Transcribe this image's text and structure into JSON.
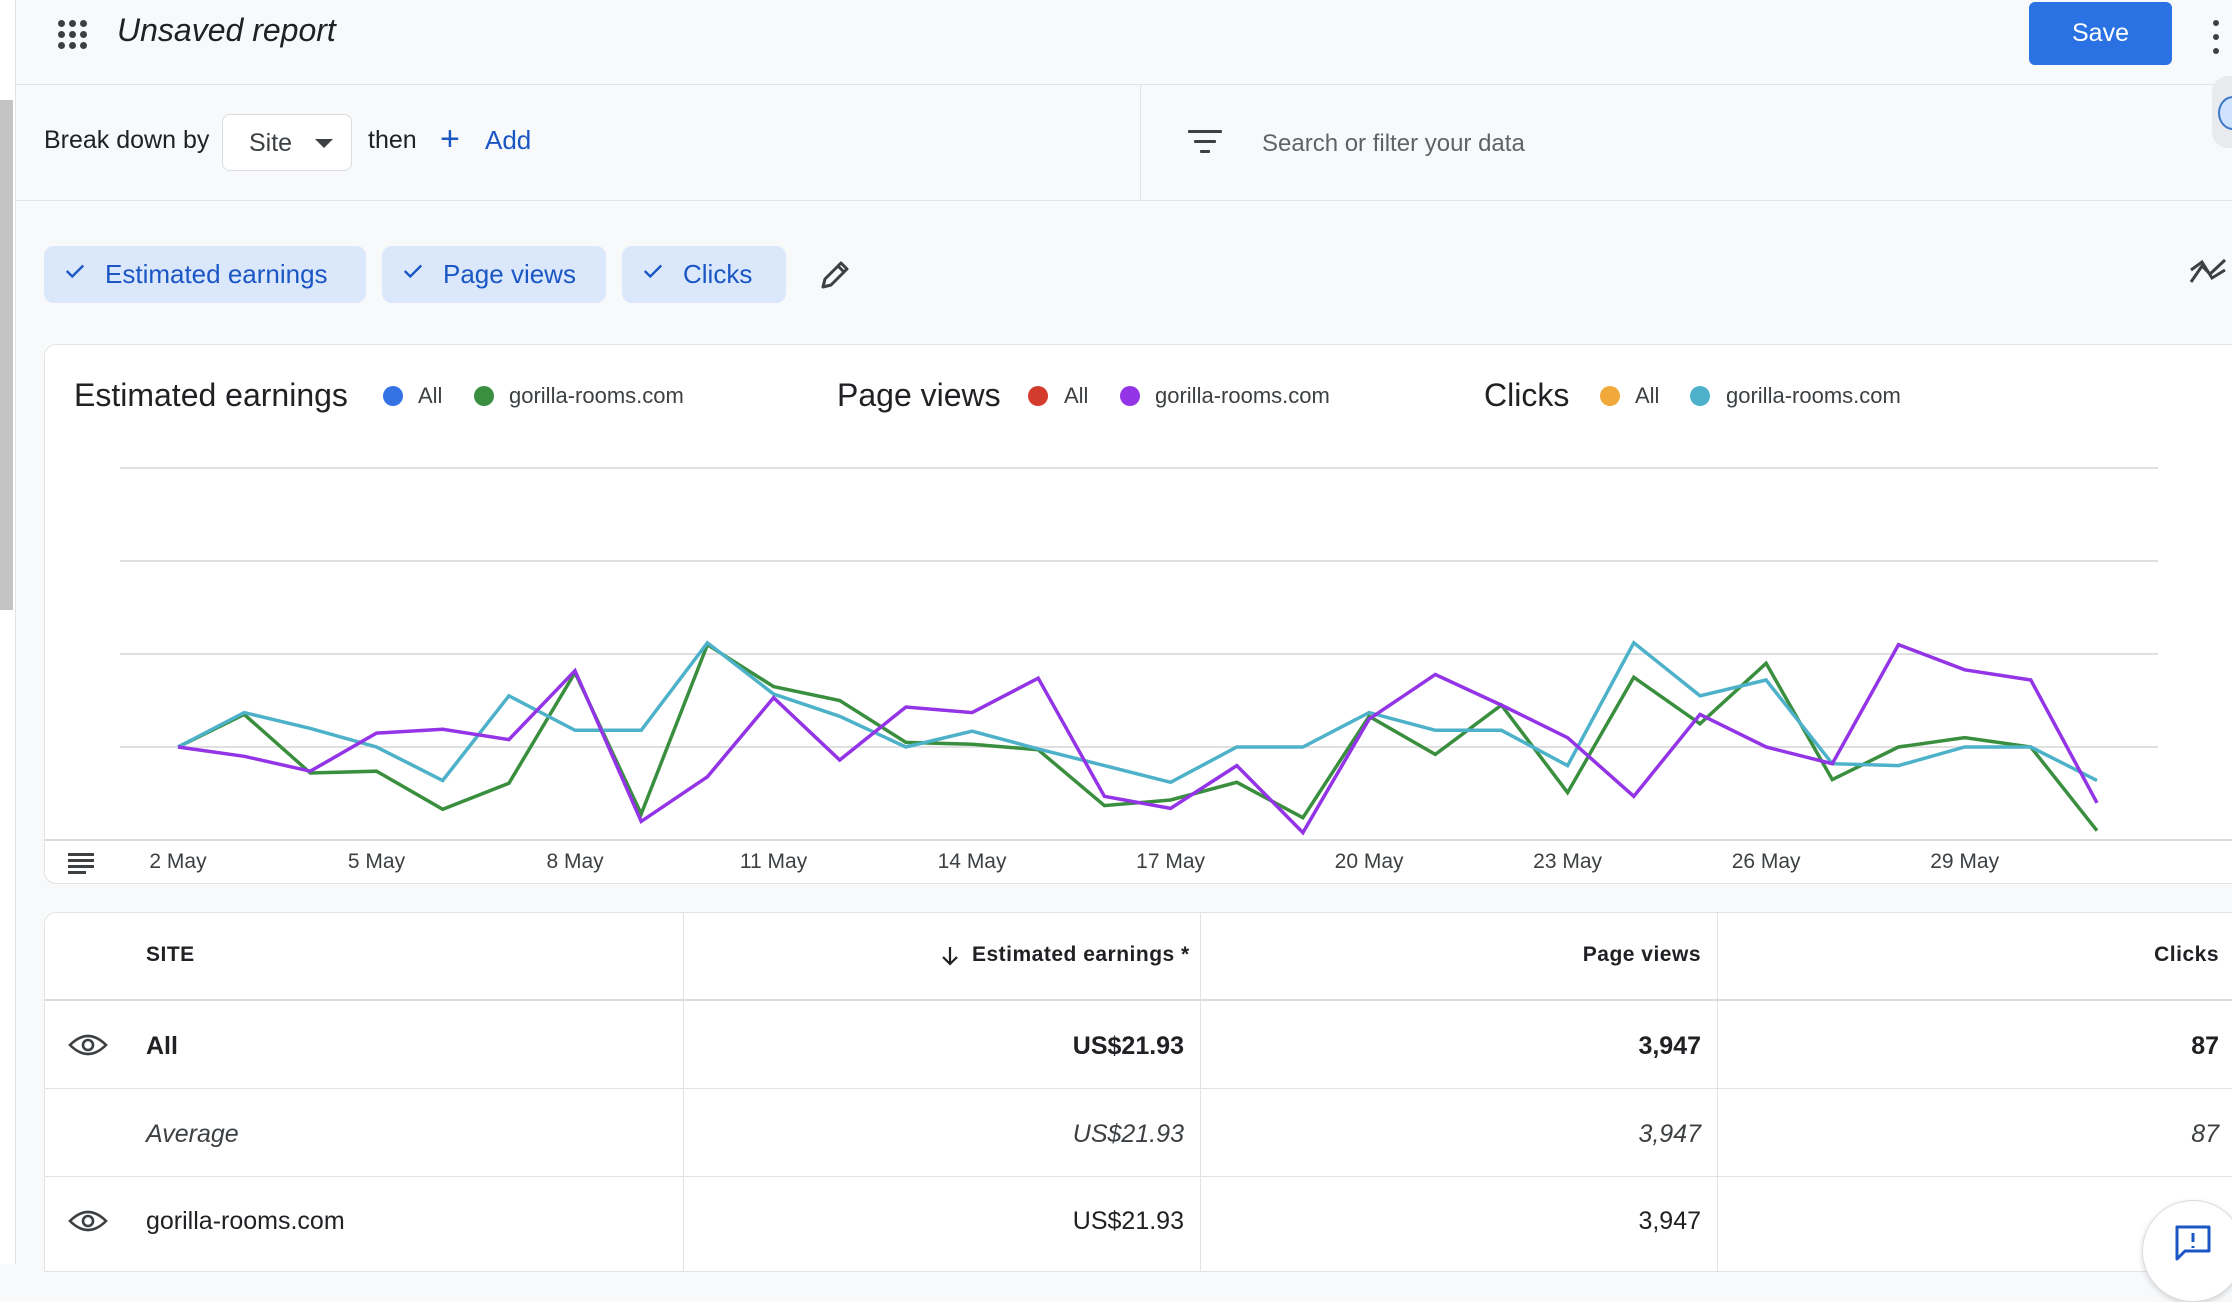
{
  "header": {
    "title": "Unsaved report",
    "save_label": "Save"
  },
  "toolbar": {
    "break_down_label": "Break down by",
    "dimension_value": "Site",
    "then_label": "then",
    "add_label": "Add",
    "search_placeholder": "Search or filter your data"
  },
  "metric_chips": [
    {
      "label": "Estimated earnings",
      "selected": true
    },
    {
      "label": "Page views",
      "selected": true
    },
    {
      "label": "Clicks",
      "selected": true
    }
  ],
  "legend": {
    "groups": [
      {
        "title": "Estimated earnings",
        "items": [
          {
            "label": "All",
            "color": "#3573e4"
          },
          {
            "label": "gorilla-rooms.com",
            "color": "#3a8f3f"
          }
        ]
      },
      {
        "title": "Page views",
        "items": [
          {
            "label": "All",
            "color": "#d33b2c"
          },
          {
            "label": "gorilla-rooms.com",
            "color": "#9334e6"
          }
        ]
      },
      {
        "title": "Clicks",
        "items": [
          {
            "label": "All",
            "color": "#f2a93b"
          },
          {
            "label": "gorilla-rooms.com",
            "color": "#4db2c9"
          }
        ]
      }
    ]
  },
  "chart_data": {
    "type": "line",
    "x": [
      "2 May",
      "3 May",
      "4 May",
      "5 May",
      "6 May",
      "7 May",
      "8 May",
      "9 May",
      "10 May",
      "11 May",
      "12 May",
      "13 May",
      "14 May",
      "15 May",
      "16 May",
      "17 May",
      "18 May",
      "19 May",
      "20 May",
      "21 May",
      "22 May",
      "23 May",
      "24 May",
      "25 May",
      "26 May",
      "27 May",
      "28 May",
      "29 May",
      "30 May",
      "31 May"
    ],
    "x_tick_labels": [
      "2 May",
      "5 May",
      "8 May",
      "11 May",
      "14 May",
      "17 May",
      "20 May",
      "23 May",
      "26 May",
      "29 May"
    ],
    "ylim": [
      0,
      4
    ],
    "grid": true,
    "series": [
      {
        "name": "gorilla-rooms.com",
        "metric": "Estimated earnings",
        "color": "#3a8f3f",
        "values": [
          1.0,
          1.35,
          0.72,
          0.74,
          0.33,
          0.61,
          1.8,
          0.28,
          2.1,
          1.65,
          1.5,
          1.05,
          1.03,
          0.97,
          0.37,
          0.43,
          0.62,
          0.24,
          1.33,
          0.92,
          1.45,
          0.51,
          1.75,
          1.25,
          1.9,
          0.65,
          1.0,
          1.1,
          1.0,
          0.1
        ]
      },
      {
        "name": "gorilla-rooms.com",
        "metric": "Page views",
        "color": "#9334e6",
        "values": [
          1.0,
          0.9,
          0.74,
          1.15,
          1.19,
          1.08,
          1.82,
          0.2,
          0.68,
          1.53,
          0.86,
          1.43,
          1.37,
          1.74,
          0.47,
          0.34,
          0.8,
          0.08,
          1.3,
          1.78,
          1.45,
          1.1,
          0.47,
          1.35,
          1.0,
          0.82,
          2.1,
          1.83,
          1.72,
          0.4
        ]
      },
      {
        "name": "gorilla-rooms.com",
        "metric": "Clicks",
        "color": "#4db2c9",
        "values": [
          1.0,
          1.37,
          1.2,
          1.0,
          0.64,
          1.55,
          1.18,
          1.18,
          2.12,
          1.57,
          1.33,
          1.0,
          1.17,
          0.98,
          0.8,
          0.62,
          1.0,
          1.0,
          1.37,
          1.18,
          1.18,
          0.8,
          2.12,
          1.55,
          1.72,
          0.82,
          0.8,
          1.0,
          1.0,
          0.64
        ]
      }
    ]
  },
  "table": {
    "columns": [
      "SITE",
      "Estimated earnings *",
      "Page views",
      "Clicks"
    ],
    "sort_column": "Estimated earnings *",
    "sort_direction": "descending",
    "rows": [
      {
        "site": "All",
        "earnings": "US$21.93",
        "page_views": "3,947",
        "clicks": "87",
        "style": "bold",
        "eye": true
      },
      {
        "site": "Average",
        "earnings": "US$21.93",
        "page_views": "3,947",
        "clicks": "87",
        "style": "italic",
        "eye": false
      },
      {
        "site": "gorilla-rooms.com",
        "earnings": "US$21.93",
        "page_views": "3,947",
        "clicks": "",
        "style": "normal",
        "eye": true
      }
    ]
  },
  "icons": {
    "apps": "apps-grid-icon",
    "filter": "filter-icon",
    "edit": "pencil-icon",
    "trend": "trend-icon",
    "table_toggle": "table-toggle-icon",
    "visibility": "eye-icon",
    "feedback": "feedback-icon"
  },
  "colors": {
    "accent": "#2a72e3",
    "chip_bg": "#dbe7fb",
    "chip_text": "#1a57c4"
  }
}
